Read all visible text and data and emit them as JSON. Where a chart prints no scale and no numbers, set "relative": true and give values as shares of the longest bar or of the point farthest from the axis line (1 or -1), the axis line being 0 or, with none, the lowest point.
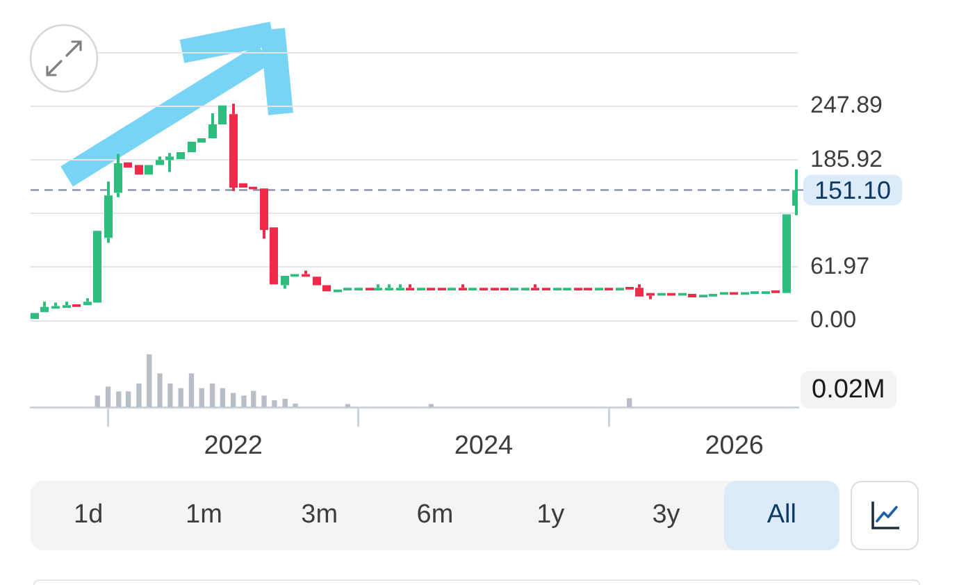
{
  "chart_data": [
    {
      "type": "candlestick",
      "x": [
        "2020-06",
        "2020-07",
        "2020-08",
        "2020-09",
        "2020-10",
        "2020-11",
        "2020-12",
        "2021-01",
        "2021-02",
        "2021-03",
        "2021-04",
        "2021-05",
        "2021-06",
        "2021-07",
        "2021-08",
        "2021-09",
        "2021-10",
        "2021-11",
        "2021-12",
        "2022-01",
        "2022-02",
        "2022-03",
        "2022-04",
        "2022-05",
        "2022-06",
        "2022-07",
        "2022-08",
        "2022-09",
        "2022-10",
        "2022-11",
        "2022-12",
        "2023-01",
        "2023-02",
        "2023-03",
        "2023-04",
        "2023-05",
        "2023-06",
        "2023-07",
        "2023-08",
        "2023-09",
        "2023-10",
        "2023-11",
        "2023-12",
        "2024-01",
        "2024-02",
        "2024-03",
        "2024-04",
        "2024-05",
        "2024-06",
        "2024-07",
        "2024-08",
        "2024-09",
        "2024-10",
        "2024-11",
        "2024-12",
        "2025-01",
        "2025-02",
        "2025-03",
        "2025-04",
        "2025-05",
        "2025-06",
        "2025-07",
        "2025-08",
        "2025-09",
        "2025-10",
        "2025-11",
        "2025-12",
        "2026-01",
        "2026-02",
        "2026-03",
        "2026-04",
        "2026-05",
        "2026-06",
        "2026-07"
      ],
      "ohlc": [
        [
          2,
          9,
          2,
          9
        ],
        [
          10,
          22,
          10,
          16
        ],
        [
          14,
          21,
          14,
          17
        ],
        [
          15,
          22,
          15,
          18
        ],
        [
          19,
          19,
          16,
          16
        ],
        [
          18,
          26,
          18,
          22
        ],
        [
          21,
          104,
          21,
          104
        ],
        [
          96,
          161,
          90,
          145
        ],
        [
          148,
          193,
          143,
          182
        ],
        [
          183,
          183,
          177,
          177
        ],
        [
          180,
          180,
          169,
          169
        ],
        [
          169,
          180,
          169,
          180
        ],
        [
          180,
          190,
          180,
          186
        ],
        [
          186,
          194,
          172,
          190
        ],
        [
          187,
          195,
          187,
          195
        ],
        [
          195,
          207,
          195,
          207
        ],
        [
          206,
          211,
          206,
          211
        ],
        [
          211,
          240,
          211,
          227
        ],
        [
          227,
          249,
          227,
          249
        ],
        [
          239,
          251,
          150,
          154
        ],
        [
          159,
          159,
          154,
          154
        ],
        [
          155,
          155,
          152,
          152
        ],
        [
          153,
          153,
          95,
          105
        ],
        [
          108,
          108,
          42,
          42
        ],
        [
          41,
          52,
          37,
          52
        ],
        [
          51,
          54,
          51,
          54
        ],
        [
          54,
          58,
          51,
          51
        ],
        [
          51,
          51,
          41,
          41
        ],
        [
          41,
          41,
          34,
          34
        ],
        [
          33,
          36,
          33,
          36
        ],
        [
          35,
          38,
          35,
          38
        ],
        [
          35,
          38,
          35,
          38
        ],
        [
          38,
          38,
          35,
          35
        ],
        [
          35,
          42,
          35,
          38
        ],
        [
          35,
          42,
          35,
          38
        ],
        [
          35,
          42,
          35,
          38
        ],
        [
          38,
          42,
          35,
          35
        ],
        [
          35,
          38,
          35,
          38
        ],
        [
          38,
          38,
          35,
          35
        ],
        [
          38,
          38,
          35,
          35
        ],
        [
          35,
          38,
          35,
          38
        ],
        [
          38,
          42,
          35,
          35
        ],
        [
          35,
          38,
          35,
          38
        ],
        [
          38,
          38,
          35,
          35
        ],
        [
          38,
          38,
          35,
          35
        ],
        [
          38,
          38,
          35,
          35
        ],
        [
          35,
          38,
          35,
          38
        ],
        [
          35,
          38,
          35,
          38
        ],
        [
          38,
          42,
          35,
          35
        ],
        [
          38,
          38,
          35,
          35
        ],
        [
          35,
          38,
          35,
          38
        ],
        [
          35,
          38,
          35,
          38
        ],
        [
          38,
          38,
          35,
          35
        ],
        [
          38,
          38,
          35,
          35
        ],
        [
          35,
          38,
          35,
          38
        ],
        [
          38,
          38,
          35,
          35
        ],
        [
          35,
          38,
          35,
          38
        ],
        [
          39,
          39,
          36,
          36
        ],
        [
          38,
          42,
          28,
          28
        ],
        [
          32,
          32,
          25,
          29
        ],
        [
          29,
          32,
          29,
          32
        ],
        [
          32,
          32,
          29,
          29
        ],
        [
          29,
          32,
          29,
          32
        ],
        [
          31,
          31,
          27,
          27
        ],
        [
          27,
          30,
          27,
          30
        ],
        [
          28,
          31,
          28,
          31
        ],
        [
          30,
          33,
          30,
          33
        ],
        [
          33,
          33,
          30,
          30
        ],
        [
          30,
          33,
          30,
          33
        ],
        [
          31,
          34,
          31,
          34
        ],
        [
          31,
          34,
          31,
          34
        ],
        [
          35,
          35,
          32,
          32
        ],
        [
          32,
          123,
          32,
          123
        ],
        [
          133,
          175,
          122,
          151.1
        ]
      ],
      "colors": [
        "#2dbd7e",
        "#2dbd7e",
        "#2dbd7e",
        "#2dbd7e",
        "#ef2a4b",
        "#2dbd7e",
        "#2dbd7e",
        "#2dbd7e",
        "#2dbd7e",
        "#ef2a4b",
        "#ef2a4b",
        "#2dbd7e",
        "#2dbd7e",
        "#2dbd7e",
        "#2dbd7e",
        "#2dbd7e",
        "#2dbd7e",
        "#2dbd7e",
        "#2dbd7e",
        "#ef2a4b",
        "#ef2a4b",
        "#ef2a4b",
        "#ef2a4b",
        "#ef2a4b",
        "#2dbd7e",
        "#2dbd7e",
        "#ef2a4b",
        "#ef2a4b",
        "#ef2a4b",
        "#2dbd7e",
        "#2dbd7e",
        "#2dbd7e",
        "#ef2a4b",
        "#2dbd7e",
        "#2dbd7e",
        "#2dbd7e",
        "#ef2a4b",
        "#2dbd7e",
        "#ef2a4b",
        "#ef2a4b",
        "#2dbd7e",
        "#ef2a4b",
        "#2dbd7e",
        "#ef2a4b",
        "#ef2a4b",
        "#ef2a4b",
        "#2dbd7e",
        "#2dbd7e",
        "#ef2a4b",
        "#ef2a4b",
        "#2dbd7e",
        "#2dbd7e",
        "#ef2a4b",
        "#ef2a4b",
        "#2dbd7e",
        "#ef2a4b",
        "#2dbd7e",
        "#ef2a4b",
        "#ef2a4b",
        "#ef2a4b",
        "#2dbd7e",
        "#ef2a4b",
        "#2dbd7e",
        "#ef2a4b",
        "#2dbd7e",
        "#2dbd7e",
        "#2dbd7e",
        "#ef2a4b",
        "#2dbd7e",
        "#2dbd7e",
        "#2dbd7e",
        "#ef2a4b",
        "#2dbd7e",
        "#2dbd7e"
      ],
      "xlim": [
        "2020-05-20",
        "2026-07-05"
      ],
      "xticks": [
        "2022",
        "2024",
        "2026"
      ],
      "ylim": [
        0,
        309.86
      ],
      "yticks": [
        {
          "value": 0,
          "label": "0.00"
        },
        61.97,
        {
          "value": 123.94,
          "label": null
        },
        185.92,
        247.89,
        {
          "value": 309.86,
          "label": null
        }
      ],
      "tick_labels": "y",
      "grid": "y",
      "ref_lines": [
        {
          "axis": "y",
          "value": 151.1,
          "label": "151.10",
          "color": "#8b97a6",
          "line_style": "dashed"
        }
      ]
    },
    {
      "type": "bar",
      "relative": true,
      "x": [
        "2020-12",
        "2021-01",
        "2021-02",
        "2021-03",
        "2021-04",
        "2021-05",
        "2021-06",
        "2021-07",
        "2021-08",
        "2021-09",
        "2021-10",
        "2021-11",
        "2021-12",
        "2022-01",
        "2022-02",
        "2022-03",
        "2022-04",
        "2022-05",
        "2022-06",
        "2022-07",
        "2022-12",
        "2023-08",
        "2025-03"
      ],
      "values": [
        0.21,
        0.38,
        0.29,
        0.29,
        0.44,
        1,
        0.63,
        0.44,
        0.35,
        0.63,
        0.35,
        0.44,
        0.35,
        0.26,
        0.21,
        0.3,
        0.21,
        0.12,
        0.15,
        0.06,
        0.05,
        0.05,
        0.16
      ],
      "color": "#b9bdc5",
      "xlim": [
        "2020-05-20",
        "2026-07-05"
      ],
      "xticks": [
        "2022",
        "2024",
        "2026"
      ],
      "annotations": [
        "0.02M"
      ]
    },
    {
      "type": "other",
      "annotations": [
        "1d",
        "1m",
        "3m",
        "6m",
        "1y",
        "3y",
        "All"
      ]
    }
  ]
}
